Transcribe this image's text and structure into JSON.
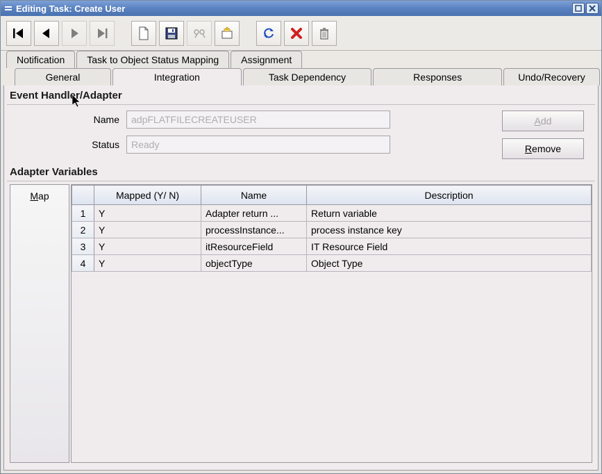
{
  "window": {
    "title": "Editing Task: Create User"
  },
  "tabs_top": {
    "notification": "Notification",
    "mapping": "Task to Object Status Mapping",
    "assignment": "Assignment"
  },
  "tabs_bottom": {
    "general": "General",
    "integration": "Integration",
    "task_dependency": "Task Dependency",
    "responses": "Responses",
    "undo_recovery": "Undo/Recovery",
    "active": "integration"
  },
  "event_handler": {
    "section_label": "Event Handler/Adapter",
    "name_label": "Name",
    "name_value": "adpFLATFILECREATEUSER",
    "status_label": "Status",
    "status_value": "Ready",
    "add_label": "Add",
    "remove_label": "Remove"
  },
  "adapter_vars": {
    "section_label": "Adapter Variables",
    "map_label": "Map",
    "columns": {
      "mapped": "Mapped (Y/ N)",
      "name": "Name",
      "description": "Description"
    },
    "rows": [
      {
        "n": "1",
        "mapped": "Y",
        "name": "Adapter return ...",
        "desc": "Return variable"
      },
      {
        "n": "2",
        "mapped": "Y",
        "name": "processInstance...",
        "desc": "process instance key"
      },
      {
        "n": "3",
        "mapped": "Y",
        "name": "itResourceField",
        "desc": "IT Resource Field"
      },
      {
        "n": "4",
        "mapped": "Y",
        "name": "objectType",
        "desc": "Object Type"
      }
    ]
  },
  "colors": {
    "titlebar_start": "#7da0d8",
    "titlebar_end": "#4a72b0",
    "content_bg": "#f0ecee",
    "header_bg": "#dde4f0",
    "border": "#9c98a0",
    "disabled_text": "#b0acb0"
  }
}
